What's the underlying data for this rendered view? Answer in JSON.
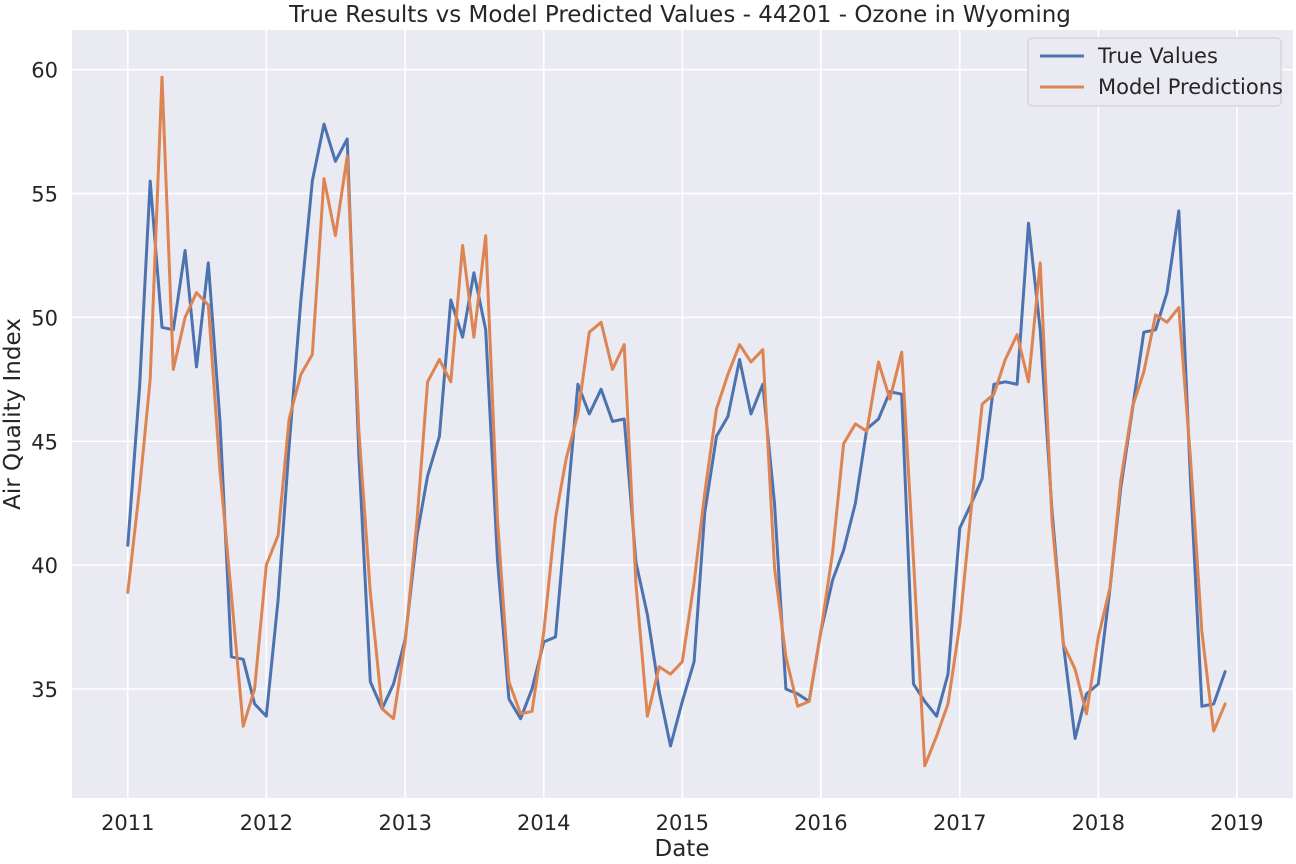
{
  "chart_data": {
    "type": "line",
    "title": "True Results vs Model Predicted Values - 44201 - Ozone in Wyoming",
    "xlabel": "Date",
    "ylabel": "Air Quality Index",
    "xlim": [
      "2010-08-07",
      "2019-05-29"
    ],
    "ylim": [
      30.6,
      61.6
    ],
    "x_ticks": [
      "2011",
      "2012",
      "2013",
      "2014",
      "2015",
      "2016",
      "2017",
      "2018",
      "2019"
    ],
    "y_ticks": [
      35,
      40,
      45,
      50,
      55,
      60
    ],
    "grid": true,
    "legend_position": "top-right",
    "background": "#EAEAF2",
    "grid_color": "#FFFFFF",
    "x": [
      "2011-01",
      "2011-02",
      "2011-03",
      "2011-04",
      "2011-05",
      "2011-06",
      "2011-07",
      "2011-08",
      "2011-09",
      "2011-10",
      "2011-11",
      "2011-12",
      "2012-01",
      "2012-02",
      "2012-03",
      "2012-04",
      "2012-05",
      "2012-06",
      "2012-07",
      "2012-08",
      "2012-09",
      "2012-10",
      "2012-11",
      "2012-12",
      "2013-01",
      "2013-02",
      "2013-03",
      "2013-04",
      "2013-05",
      "2013-06",
      "2013-07",
      "2013-08",
      "2013-09",
      "2013-10",
      "2013-11",
      "2013-12",
      "2014-01",
      "2014-02",
      "2014-03",
      "2014-04",
      "2014-05",
      "2014-06",
      "2014-07",
      "2014-08",
      "2014-09",
      "2014-10",
      "2014-11",
      "2014-12",
      "2015-01",
      "2015-02",
      "2015-03",
      "2015-04",
      "2015-05",
      "2015-06",
      "2015-07",
      "2015-08",
      "2015-09",
      "2015-10",
      "2015-11",
      "2015-12",
      "2016-01",
      "2016-02",
      "2016-03",
      "2016-04",
      "2016-05",
      "2016-06",
      "2016-07",
      "2016-08",
      "2016-09",
      "2016-10",
      "2016-11",
      "2016-12",
      "2017-01",
      "2017-02",
      "2017-03",
      "2017-04",
      "2017-05",
      "2017-06",
      "2017-07",
      "2017-08",
      "2017-09",
      "2017-10",
      "2017-11",
      "2017-12",
      "2018-01",
      "2018-02",
      "2018-03",
      "2018-04",
      "2018-05",
      "2018-06",
      "2018-07",
      "2018-08",
      "2018-09",
      "2018-10",
      "2018-11",
      "2018-12"
    ],
    "series": [
      {
        "name": "True Values",
        "color": "#4C72B0",
        "values": [
          40.8,
          47.2,
          55.5,
          49.6,
          49.5,
          52.7,
          48.0,
          52.2,
          45.8,
          36.3,
          36.2,
          34.4,
          33.9,
          38.6,
          44.8,
          50.7,
          55.5,
          57.8,
          56.3,
          57.2,
          44.4,
          35.3,
          34.2,
          35.2,
          37.0,
          41.2,
          43.6,
          45.2,
          50.7,
          49.2,
          51.8,
          49.5,
          40.2,
          34.6,
          33.8,
          35.0,
          36.9,
          37.1,
          42.0,
          47.3,
          46.1,
          47.1,
          45.8,
          45.9,
          40.1,
          38.0,
          34.9,
          32.7,
          34.5,
          36.1,
          42.1,
          45.2,
          46.0,
          48.3,
          46.1,
          47.3,
          42.5,
          35.0,
          34.8,
          34.5,
          37.3,
          39.4,
          40.6,
          42.5,
          45.5,
          45.9,
          47.0,
          46.9,
          35.2,
          34.5,
          33.9,
          35.6,
          41.5,
          42.5,
          43.5,
          47.3,
          47.4,
          47.3,
          53.8,
          49.5,
          42.2,
          36.8,
          33.0,
          34.8,
          35.2,
          39.1,
          43.1,
          46.3,
          49.4,
          49.5,
          51.0,
          54.3,
          43.4,
          34.3,
          34.4,
          35.7
        ]
      },
      {
        "name": "Model Predictions",
        "color": "#DD8452",
        "values": [
          38.9,
          43.1,
          47.5,
          59.7,
          47.9,
          50.0,
          51.0,
          50.5,
          43.8,
          38.8,
          33.5,
          35.0,
          40.0,
          41.2,
          45.9,
          47.7,
          48.5,
          55.6,
          53.3,
          56.5,
          45.4,
          38.9,
          34.2,
          33.8,
          36.9,
          41.8,
          47.4,
          48.3,
          47.4,
          52.9,
          49.2,
          53.3,
          41.8,
          35.3,
          34.0,
          34.1,
          37.3,
          41.9,
          44.3,
          46.1,
          49.4,
          49.8,
          47.9,
          48.9,
          39.2,
          33.9,
          35.9,
          35.6,
          36.1,
          39.3,
          42.9,
          46.3,
          47.7,
          48.9,
          48.2,
          48.7,
          39.9,
          36.3,
          34.3,
          34.5,
          37.3,
          40.5,
          44.9,
          45.7,
          45.4,
          48.2,
          46.7,
          48.6,
          40.2,
          31.9,
          33.1,
          34.4,
          37.6,
          42.4,
          46.5,
          46.9,
          48.3,
          49.3,
          47.4,
          52.2,
          41.8,
          36.8,
          35.8,
          34.0,
          37.1,
          39.1,
          43.4,
          46.4,
          47.8,
          50.1,
          49.8,
          50.4,
          44.3,
          37.3,
          33.3,
          34.4
        ]
      }
    ]
  }
}
